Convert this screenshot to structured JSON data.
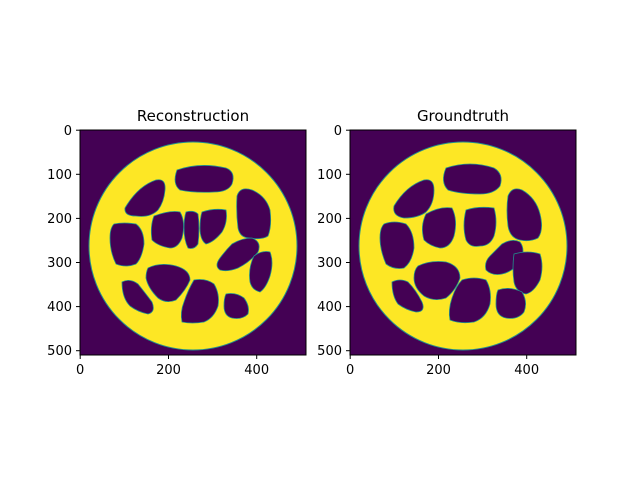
{
  "figure": {
    "panels": [
      {
        "title": "Reconstruction",
        "xticks": [
          "0",
          "200",
          "400"
        ],
        "yticks": [
          "0",
          "100",
          "200",
          "300",
          "400",
          "500"
        ]
      },
      {
        "title": "Groundtruth",
        "xticks": [
          "0",
          "200",
          "400"
        ],
        "yticks": [
          "0",
          "100",
          "200",
          "300",
          "400",
          "500"
        ]
      }
    ],
    "image_extent": [
      0,
      512
    ],
    "colors": {
      "background": "#440154",
      "foreground": "#fde725",
      "edge": "#21918c"
    }
  }
}
